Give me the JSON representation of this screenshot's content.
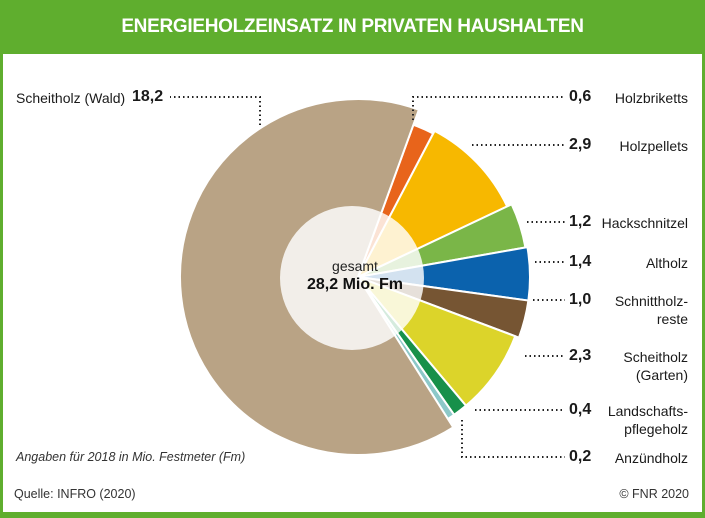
{
  "chart_data": {
    "type": "pie",
    "title": "ENERGIEHOLZEINSATZ IN PRIVATEN HAUSHALTEN",
    "center_label": "gesamt",
    "total_label": "28,2 Mio. Fm",
    "unit_note": "Angaben für 2018 in Mio. Festmeter (Fm)",
    "slices": [
      {
        "name": "Holzbriketts",
        "value": 0.6,
        "value_label": "0,6",
        "color": "#e8641b"
      },
      {
        "name": "Holzpellets",
        "value": 2.9,
        "value_label": "2,9",
        "color": "#f7b800"
      },
      {
        "name": "Hackschnitzel",
        "value": 1.2,
        "value_label": "1,2",
        "color": "#7ab648"
      },
      {
        "name": "Altholz",
        "value": 1.4,
        "value_label": "1,4",
        "color": "#0b62ad"
      },
      {
        "name": "Schnittholz-\nreste",
        "value": 1.0,
        "value_label": "1,0",
        "color": "#765533"
      },
      {
        "name": "Scheitholz\n(Garten)",
        "value": 2.3,
        "value_label": "2,3",
        "color": "#dcd42a"
      },
      {
        "name": "Landschafts-\npflegeholz",
        "value": 0.4,
        "value_label": "0,4",
        "color": "#17904a"
      },
      {
        "name": "Anzündholz",
        "value": 0.2,
        "value_label": "0,2",
        "color": "#8cc8c8"
      },
      {
        "name": "Scheitholz (Wald)",
        "value": 18.2,
        "value_label": "18,2",
        "color": "#b9a385"
      }
    ]
  },
  "footer": {
    "source": "Quelle: INFRO (2020)",
    "copyright": "© FNR 2020"
  },
  "colors": {
    "brand": "#5fae2e"
  }
}
